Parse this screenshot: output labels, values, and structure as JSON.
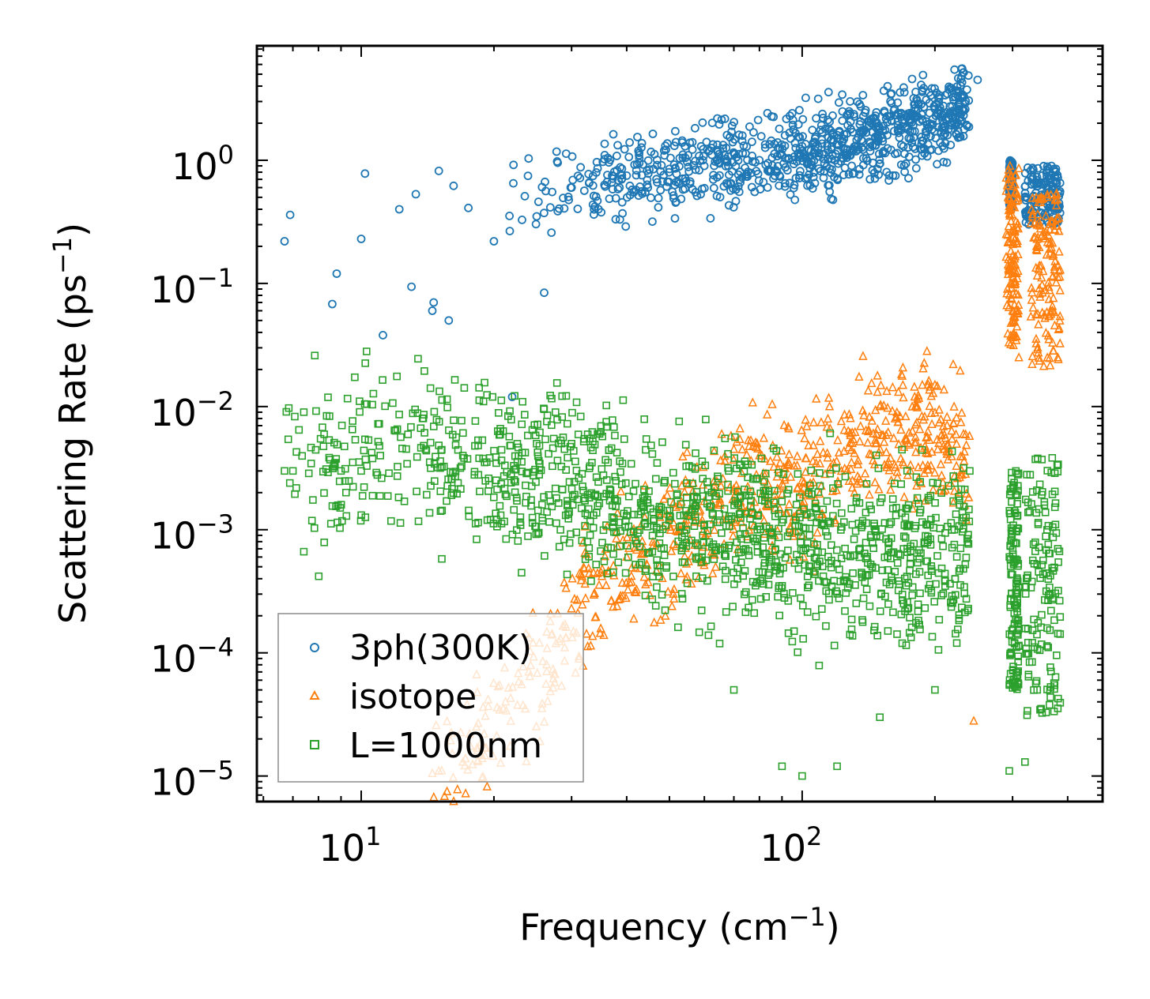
{
  "chart_data": {
    "type": "scatter",
    "title": "",
    "xlabel": "Frequency (cm",
    "xlabel_sup": "−1",
    "xlabel_end": ")",
    "ylabel": "Scattering Rate (ps",
    "ylabel_sup": "−1",
    "ylabel_end": ")",
    "xscale": "log",
    "yscale": "log",
    "xlim": [
      5.8,
      480
    ],
    "ylim": [
      6.2e-06,
      8.5
    ],
    "x_ticks": [
      {
        "value": 10,
        "base": "10",
        "exp": "1"
      },
      {
        "value": 100,
        "base": "10",
        "exp": "2"
      }
    ],
    "y_ticks": [
      {
        "value": 1,
        "base": "10",
        "exp": "0"
      },
      {
        "value": 0.1,
        "base": "10",
        "exp": "−1"
      },
      {
        "value": 0.01,
        "base": "10",
        "exp": "−2"
      },
      {
        "value": 0.001,
        "base": "10",
        "exp": "−3"
      },
      {
        "value": 0.0001,
        "base": "10",
        "exp": "−4"
      },
      {
        "value": 1e-05,
        "base": "10",
        "exp": "−5"
      }
    ],
    "legend_position": "lower-left",
    "series": [
      {
        "name": "3ph(300K)",
        "marker": "circle",
        "color": "#1f77b4",
        "sample_points": [
          [
            6.7,
            0.22
          ],
          [
            6.9,
            0.36
          ],
          [
            8.6,
            0.068
          ],
          [
            8.8,
            0.12
          ],
          [
            10,
            0.23
          ],
          [
            10.2,
            0.78
          ],
          [
            11.2,
            0.038
          ],
          [
            12.2,
            0.4
          ],
          [
            13,
            0.094
          ],
          [
            13.3,
            0.53
          ],
          [
            14.5,
            0.06
          ],
          [
            14.6,
            0.07
          ],
          [
            15,
            0.82
          ],
          [
            15.8,
            0.05
          ],
          [
            16.2,
            0.62
          ],
          [
            17.5,
            0.41
          ],
          [
            20,
            0.22
          ],
          [
            22,
            0.012
          ],
          [
            25,
            0.35
          ],
          [
            26,
            0.084
          ],
          [
            30,
            0.6
          ],
          [
            40,
            0.75
          ],
          [
            50,
            0.85
          ],
          [
            60,
            0.9
          ],
          [
            80,
            1.0
          ],
          [
            100,
            1.3
          ],
          [
            120,
            1.6
          ],
          [
            150,
            1.8
          ],
          [
            180,
            2.2
          ],
          [
            200,
            2.6
          ],
          [
            230,
            3.2
          ],
          [
            250,
            4.5
          ],
          [
            300,
            0.6
          ],
          [
            320,
            0.5
          ],
          [
            350,
            0.75
          ],
          [
            380,
            0.55
          ]
        ],
        "trend": [
          [
            20,
            0.5
          ],
          [
            40,
            0.7
          ],
          [
            60,
            0.85
          ],
          [
            100,
            1.15
          ],
          [
            150,
            1.6
          ],
          [
            200,
            2.1
          ],
          [
            240,
            2.8
          ]
        ],
        "high_branch": [
          [
            295,
            300,
            0.4,
            1.0
          ],
          [
            320,
            385,
            0.3,
            0.9
          ]
        ]
      },
      {
        "name": "isotope",
        "marker": "triangle",
        "color": "#ff7f0e",
        "sample_points": [
          [
            14.5,
            1.05e-05
          ],
          [
            15,
            1.1e-05
          ],
          [
            17,
            1.3e-05
          ],
          [
            19,
            2.2e-05
          ],
          [
            21,
            3.5e-05
          ],
          [
            24,
            7e-05
          ],
          [
            27,
            0.00014
          ],
          [
            29,
            0.00017
          ],
          [
            31,
            0.00021
          ],
          [
            35,
            0.00045
          ],
          [
            40,
            0.0006
          ],
          [
            45,
            0.00065
          ],
          [
            60,
            0.0017
          ],
          [
            70,
            0.0045
          ],
          [
            80,
            0.004
          ],
          [
            100,
            0.0025
          ],
          [
            130,
            0.0025
          ],
          [
            150,
            0.01
          ],
          [
            180,
            0.012
          ],
          [
            200,
            0.015
          ],
          [
            220,
            0.022
          ],
          [
            245,
            2.8e-05
          ],
          [
            295,
            0.7
          ],
          [
            300,
            0.06
          ],
          [
            310,
            0.025
          ],
          [
            340,
            0.2
          ],
          [
            360,
            0.5
          ],
          [
            380,
            0.025
          ]
        ],
        "trend": [
          [
            14.5,
            1.1e-05
          ],
          [
            20,
            2.5e-05
          ],
          [
            28,
            0.00012
          ],
          [
            36,
            0.00045
          ],
          [
            45,
            0.00065
          ],
          [
            60,
            0.0012
          ],
          [
            80,
            0.0025
          ],
          [
            110,
            0.0025
          ],
          [
            140,
            0.006
          ],
          [
            180,
            0.008
          ],
          [
            240,
            0.0035
          ]
        ],
        "high_branch": [
          [
            290,
            310,
            0.03,
            0.9
          ],
          [
            330,
            385,
            0.02,
            0.55
          ]
        ]
      },
      {
        "name": "L=1000nm",
        "marker": "square",
        "color": "#2ca02c",
        "sample_points": [
          [
            6.7,
            0.003
          ],
          [
            7,
            0.003
          ],
          [
            8.5,
            0.0037
          ],
          [
            9,
            0.003
          ],
          [
            10,
            0.003
          ],
          [
            11,
            0.0048
          ],
          [
            14,
            0.0045
          ],
          [
            17,
            0.004
          ],
          [
            25,
            0.005
          ],
          [
            30,
            0.005
          ],
          [
            40,
            0.0013
          ],
          [
            50,
            0.0013
          ],
          [
            60,
            0.0011
          ],
          [
            70,
            5e-05
          ],
          [
            90,
            1.2e-05
          ],
          [
            100,
            1e-05
          ],
          [
            120,
            1.2e-05
          ],
          [
            150,
            3e-05
          ],
          [
            200,
            5e-05
          ],
          [
            240,
            0.003
          ],
          [
            295,
            1.1e-05
          ],
          [
            320,
            1.3e-05
          ],
          [
            380,
            0.0007
          ]
        ],
        "trend": [
          [
            6.7,
            0.003
          ],
          [
            15,
            0.004
          ],
          [
            30,
            0.0025
          ],
          [
            45,
            0.0013
          ],
          [
            70,
            0.0009
          ],
          [
            100,
            0.0008
          ],
          [
            150,
            0.00065
          ],
          [
            200,
            0.0006
          ],
          [
            240,
            0.0007
          ]
        ],
        "high_branch": [
          [
            295,
            310,
            5e-05,
            0.003
          ],
          [
            320,
            385,
            3e-05,
            0.004
          ]
        ]
      }
    ]
  }
}
